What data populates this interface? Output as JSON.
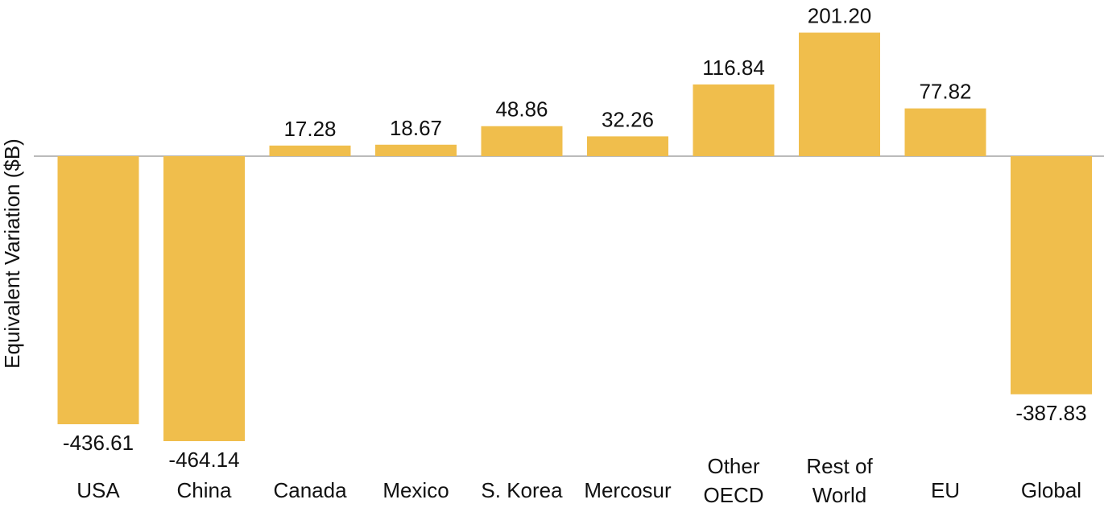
{
  "chart_data": {
    "type": "bar",
    "title": "",
    "xlabel": "",
    "ylabel": "Equivalent Variation ($B)",
    "categories": [
      "USA",
      "China",
      "Canada",
      "Mexico",
      "S. Korea",
      "Mercosur",
      "Other OECD",
      "Rest of World",
      "EU",
      "Global"
    ],
    "category_lines": [
      [
        "USA"
      ],
      [
        "China"
      ],
      [
        "Canada"
      ],
      [
        "Mexico"
      ],
      [
        "S. Korea"
      ],
      [
        "Mercosur"
      ],
      [
        "Other",
        "OECD"
      ],
      [
        "Rest of",
        "World"
      ],
      [
        "EU"
      ],
      [
        "Global"
      ]
    ],
    "values": [
      -436.61,
      -464.14,
      17.28,
      18.67,
      48.86,
      32.26,
      116.84,
      201.2,
      77.82,
      -387.83
    ],
    "value_labels": [
      "-436.61",
      "-464.14",
      "17.28",
      "18.67",
      "48.86",
      "32.26",
      "116.84",
      "201.20",
      "77.82",
      "-387.83"
    ],
    "ylim": [
      -464.14,
      201.2
    ],
    "grid": false,
    "legend": "none",
    "colors": {
      "bar": "#F0BE4C",
      "zero_line": "#BBBBBB",
      "text": "#111111"
    }
  }
}
